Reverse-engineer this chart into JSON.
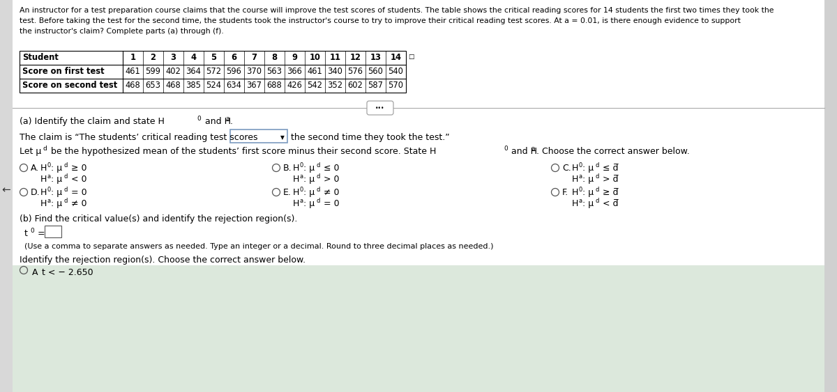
{
  "bg_color": "#f0f0f0",
  "main_bg": "#ffffff",
  "header_lines": [
    "An instructor for a test preparation course claims that the course will improve the test scores of students. The table shows the critical reading scores for 14 students the first two times they took the",
    "test. Before taking the test for the second time, the students took the instructor's course to try to improve their critical reading test scores. At a = 0.01, is there enough evidence to support",
    "the instructor's claim? Complete parts (a) through (f)."
  ],
  "table_headers": [
    "Student",
    "1",
    "2",
    "3",
    "4",
    "5",
    "6",
    "7",
    "8",
    "9",
    "10",
    "11",
    "12",
    "13",
    "14"
  ],
  "row1_label": "Score on first test",
  "row1_values": [
    "461",
    "599",
    "402",
    "364",
    "572",
    "596",
    "370",
    "563",
    "366",
    "461",
    "340",
    "576",
    "560",
    "540"
  ],
  "row2_label": "Score on second test",
  "row2_values": [
    "468",
    "653",
    "468",
    "385",
    "524",
    "634",
    "367",
    "688",
    "426",
    "542",
    "352",
    "602",
    "587",
    "570"
  ],
  "part_a_text": "(a) Identify the claim and state H",
  "part_a_sub0": "0",
  "part_a_and": " and H",
  "part_a_suba": "a",
  "part_a_dot": ".",
  "claim_before": "The claim is “The students’ critical reading test scores",
  "claim_after": "the second time they took the test.”",
  "let_text": "Let μ",
  "let_sub": "d",
  "let_rest": " be the hypothesized mean of the students’ first score minus their second score. State H",
  "let_sub2": "0",
  "let_and": " and H",
  "let_suba": "a",
  "let_choose": ". Choose the correct answer below.",
  "opt_A_label": "A.",
  "opt_A_h0": "H",
  "opt_A_h0_sub": "0",
  "opt_A_h0_sym": ": μ",
  "opt_A_h0_sub2": "d",
  "opt_A_h0_rel": " ≥ 0",
  "opt_A_ha": "H",
  "opt_A_ha_sub": "a",
  "opt_A_ha_sym": ": μ",
  "opt_A_ha_sub2": "d",
  "opt_A_ha_rel": " < 0",
  "opt_B_label": "B.",
  "opt_B_h0_rel": "≤ 0",
  "opt_B_ha_rel": "> 0",
  "opt_C_label": "C.",
  "opt_C_h0_rel": "≤ d̅",
  "opt_C_ha_rel": "> d̅",
  "opt_D_label": "D.",
  "opt_D_h0_rel": "= 0",
  "opt_D_ha_rel": "≠ 0",
  "opt_E_label": "E.",
  "opt_E_h0_rel": "≠ 0",
  "opt_E_ha_rel": "= 0",
  "opt_F_label": "F.",
  "opt_F_h0_rel": "≥ d̅",
  "opt_F_ha_rel": "< d̅",
  "part_b_text": "(b) Find the critical value(s) and identify the rejection region(s).",
  "t0_text": "t",
  "t0_sub": "0",
  "t0_eq": " =",
  "use_comma": "(Use a comma to separate answers as needed. Type an integer or a decimal. Round to three decimal places as needed.)",
  "identify_text": "Identify the rejection region(s). Choose the correct answer below.",
  "bottom_opt_label": "A",
  "bottom_opt_text": "t < − 2.650"
}
